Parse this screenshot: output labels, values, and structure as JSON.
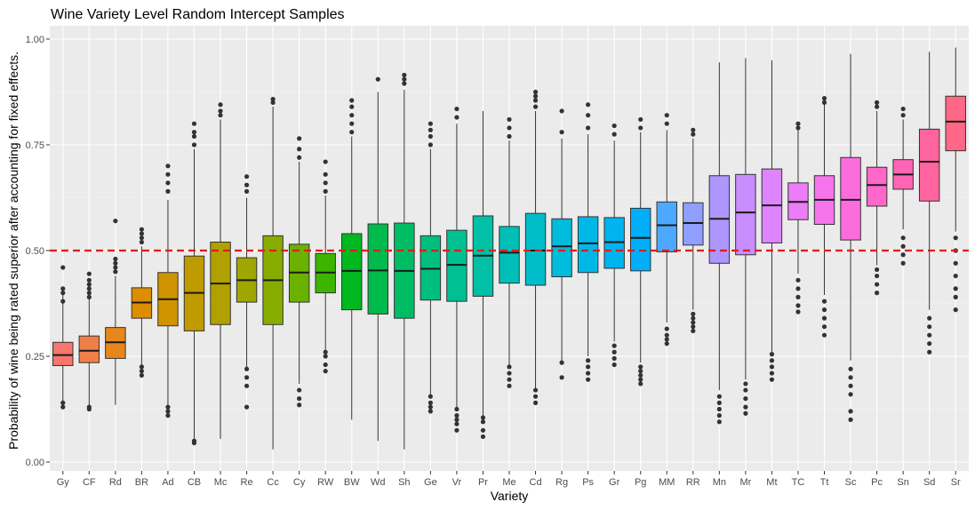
{
  "chart_data": {
    "type": "boxplot",
    "title": "Wine Variety Level Random Intercept Samples",
    "xlabel": "Variety",
    "ylabel": "Probability of wine being rated superior after accounting for fixed effects.",
    "ylim": [
      0,
      1.02
    ],
    "y_ticks": [
      "0.00",
      "0.25",
      "0.50",
      "0.75",
      "1.00"
    ],
    "y_tick_values": [
      0,
      0.25,
      0.5,
      0.75,
      1.0
    ],
    "grid": true,
    "reference_line": {
      "y": 0.5,
      "color": "#e41a1c",
      "style": "dashed"
    },
    "categories": [
      "Gy",
      "CF",
      "Rd",
      "BR",
      "Ad",
      "CB",
      "Mc",
      "Re",
      "Cc",
      "Cy",
      "RW",
      "BW",
      "Wd",
      "Sh",
      "Ge",
      "Vr",
      "Pr",
      "Me",
      "Cd",
      "Rg",
      "Ps",
      "Gr",
      "Pg",
      "MM",
      "RR",
      "Mn",
      "Mr",
      "Mt",
      "TC",
      "Tt",
      "Sc",
      "Pc",
      "Sn",
      "Sd",
      "Sr"
    ],
    "colors": [
      "#F8766D",
      "#EF7F48",
      "#E7861B",
      "#DD8D00",
      "#CF9400",
      "#C09B00",
      "#B0A100",
      "#9DA700",
      "#87AC00",
      "#6BB100",
      "#3CB500",
      "#00B81F",
      "#00BB4B",
      "#00BD65",
      "#00BF7D",
      "#00C091",
      "#00C0A5",
      "#00BFB8",
      "#00BDCA",
      "#00BBDB",
      "#00B8E7",
      "#00B4F0",
      "#00AEFA",
      "#4DA8FF",
      "#8F9FFF",
      "#AE96FF",
      "#C88DFF",
      "#DE84FF",
      "#EC7CF8",
      "#F674EB",
      "#FD6CDC",
      "#FF68C9",
      "#FF65B5",
      "#FF649E",
      "#FF6787"
    ],
    "boxes": [
      {
        "min": 0.135,
        "q1": 0.228,
        "median": 0.253,
        "q3": 0.283,
        "max": 0.395,
        "outliers": [
          0.13,
          0.14,
          0.38,
          0.4,
          0.41,
          0.46
        ]
      },
      {
        "min": 0.13,
        "q1": 0.235,
        "median": 0.263,
        "q3": 0.298,
        "max": 0.385,
        "outliers": [
          0.125,
          0.13,
          0.39,
          0.4,
          0.41,
          0.42,
          0.43,
          0.445
        ]
      },
      {
        "min": 0.135,
        "q1": 0.245,
        "median": 0.283,
        "q3": 0.318,
        "max": 0.44,
        "outliers": [
          0.45,
          0.46,
          0.47,
          0.48,
          0.57
        ]
      },
      {
        "min": 0.215,
        "q1": 0.34,
        "median": 0.377,
        "q3": 0.412,
        "max": 0.51,
        "outliers": [
          0.205,
          0.215,
          0.225,
          0.52,
          0.53,
          0.54,
          0.55
        ]
      },
      {
        "min": 0.135,
        "q1": 0.322,
        "median": 0.385,
        "q3": 0.448,
        "max": 0.62,
        "outliers": [
          0.11,
          0.12,
          0.13,
          0.64,
          0.66,
          0.68,
          0.7
        ]
      },
      {
        "min": 0.05,
        "q1": 0.31,
        "median": 0.4,
        "q3": 0.487,
        "max": 0.74,
        "outliers": [
          0.045,
          0.05,
          0.75,
          0.77,
          0.78,
          0.8
        ]
      },
      {
        "min": 0.055,
        "q1": 0.325,
        "median": 0.422,
        "q3": 0.52,
        "max": 0.81,
        "outliers": [
          0.82,
          0.83,
          0.845
        ]
      },
      {
        "min": 0.22,
        "q1": 0.378,
        "median": 0.43,
        "q3": 0.483,
        "max": 0.625,
        "outliers": [
          0.13,
          0.18,
          0.2,
          0.22,
          0.64,
          0.655,
          0.675
        ]
      },
      {
        "min": 0.03,
        "q1": 0.325,
        "median": 0.43,
        "q3": 0.535,
        "max": 0.84,
        "outliers": [
          0.85,
          0.858
        ]
      },
      {
        "min": 0.185,
        "q1": 0.378,
        "median": 0.448,
        "q3": 0.515,
        "max": 0.71,
        "outliers": [
          0.135,
          0.15,
          0.17,
          0.72,
          0.74,
          0.765
        ]
      },
      {
        "min": 0.26,
        "q1": 0.4,
        "median": 0.448,
        "q3": 0.493,
        "max": 0.63,
        "outliers": [
          0.215,
          0.23,
          0.25,
          0.26,
          0.64,
          0.66,
          0.68,
          0.71
        ]
      },
      {
        "min": 0.1,
        "q1": 0.36,
        "median": 0.452,
        "q3": 0.54,
        "max": 0.77,
        "outliers": [
          0.78,
          0.8,
          0.82,
          0.84,
          0.855
        ]
      },
      {
        "min": 0.05,
        "q1": 0.35,
        "median": 0.453,
        "q3": 0.563,
        "max": 0.875,
        "outliers": [
          0.905
        ]
      },
      {
        "min": 0.03,
        "q1": 0.34,
        "median": 0.452,
        "q3": 0.565,
        "max": 0.88,
        "outliers": [
          0.895,
          0.905,
          0.915
        ]
      },
      {
        "min": 0.16,
        "q1": 0.383,
        "median": 0.457,
        "q3": 0.535,
        "max": 0.74,
        "outliers": [
          0.12,
          0.13,
          0.14,
          0.155,
          0.75,
          0.77,
          0.785,
          0.8
        ]
      },
      {
        "min": 0.13,
        "q1": 0.38,
        "median": 0.466,
        "q3": 0.548,
        "max": 0.8,
        "outliers": [
          0.075,
          0.09,
          0.1,
          0.11,
          0.125,
          0.815,
          0.835
        ]
      },
      {
        "min": 0.11,
        "q1": 0.392,
        "median": 0.488,
        "q3": 0.582,
        "max": 0.83,
        "outliers": [
          0.06,
          0.075,
          0.095,
          0.105
        ]
      },
      {
        "min": 0.225,
        "q1": 0.423,
        "median": 0.495,
        "q3": 0.557,
        "max": 0.76,
        "outliers": [
          0.18,
          0.195,
          0.21,
          0.225,
          0.77,
          0.79,
          0.81
        ]
      },
      {
        "min": 0.17,
        "q1": 0.418,
        "median": 0.5,
        "q3": 0.588,
        "max": 0.83,
        "outliers": [
          0.14,
          0.155,
          0.17,
          0.84,
          0.855,
          0.865,
          0.875
        ]
      },
      {
        "min": 0.24,
        "q1": 0.438,
        "median": 0.51,
        "q3": 0.575,
        "max": 0.765,
        "outliers": [
          0.2,
          0.235,
          0.78,
          0.83
        ]
      },
      {
        "min": 0.25,
        "q1": 0.448,
        "median": 0.517,
        "q3": 0.58,
        "max": 0.775,
        "outliers": [
          0.195,
          0.21,
          0.225,
          0.24,
          0.79,
          0.82,
          0.845
        ]
      },
      {
        "min": 0.285,
        "q1": 0.458,
        "median": 0.52,
        "q3": 0.578,
        "max": 0.76,
        "outliers": [
          0.23,
          0.245,
          0.26,
          0.275,
          0.775,
          0.795
        ]
      },
      {
        "min": 0.235,
        "q1": 0.452,
        "median": 0.53,
        "q3": 0.6,
        "max": 0.78,
        "outliers": [
          0.185,
          0.195,
          0.205,
          0.215,
          0.225,
          0.79,
          0.81
        ]
      },
      {
        "min": 0.33,
        "q1": 0.497,
        "median": 0.56,
        "q3": 0.615,
        "max": 0.785,
        "outliers": [
          0.28,
          0.29,
          0.3,
          0.315,
          0.8,
          0.82
        ]
      },
      {
        "min": 0.36,
        "q1": 0.513,
        "median": 0.565,
        "q3": 0.613,
        "max": 0.765,
        "outliers": [
          0.31,
          0.32,
          0.33,
          0.34,
          0.35,
          0.775,
          0.785
        ]
      },
      {
        "min": 0.17,
        "q1": 0.47,
        "median": 0.575,
        "q3": 0.677,
        "max": 0.945,
        "outliers": [
          0.095,
          0.11,
          0.125,
          0.14,
          0.155
        ]
      },
      {
        "min": 0.195,
        "q1": 0.49,
        "median": 0.59,
        "q3": 0.68,
        "max": 0.955,
        "outliers": [
          0.115,
          0.13,
          0.15,
          0.17,
          0.185
        ]
      },
      {
        "min": 0.26,
        "q1": 0.518,
        "median": 0.607,
        "q3": 0.693,
        "max": 0.95,
        "outliers": [
          0.195,
          0.21,
          0.225,
          0.24,
          0.255
        ]
      },
      {
        "min": 0.445,
        "q1": 0.573,
        "median": 0.615,
        "q3": 0.66,
        "max": 0.785,
        "outliers": [
          0.355,
          0.37,
          0.39,
          0.41,
          0.43,
          0.79,
          0.8
        ]
      },
      {
        "min": 0.395,
        "q1": 0.562,
        "median": 0.62,
        "q3": 0.677,
        "max": 0.845,
        "outliers": [
          0.3,
          0.32,
          0.34,
          0.36,
          0.38,
          0.85,
          0.86
        ]
      },
      {
        "min": 0.24,
        "q1": 0.525,
        "median": 0.62,
        "q3": 0.72,
        "max": 0.965,
        "outliers": [
          0.1,
          0.12,
          0.16,
          0.18,
          0.2,
          0.22
        ]
      },
      {
        "min": 0.465,
        "q1": 0.605,
        "median": 0.655,
        "q3": 0.697,
        "max": 0.83,
        "outliers": [
          0.4,
          0.42,
          0.44,
          0.455,
          0.84,
          0.85
        ]
      },
      {
        "min": 0.55,
        "q1": 0.645,
        "median": 0.68,
        "q3": 0.715,
        "max": 0.81,
        "outliers": [
          0.47,
          0.49,
          0.51,
          0.53,
          0.82,
          0.835
        ]
      },
      {
        "min": 0.36,
        "q1": 0.617,
        "median": 0.71,
        "q3": 0.787,
        "max": 0.97,
        "outliers": [
          0.26,
          0.28,
          0.3,
          0.32,
          0.34
        ]
      },
      {
        "min": 0.545,
        "q1": 0.736,
        "median": 0.805,
        "q3": 0.865,
        "max": 0.98,
        "outliers": [
          0.36,
          0.39,
          0.41,
          0.44,
          0.47,
          0.5,
          0.53
        ]
      }
    ]
  }
}
